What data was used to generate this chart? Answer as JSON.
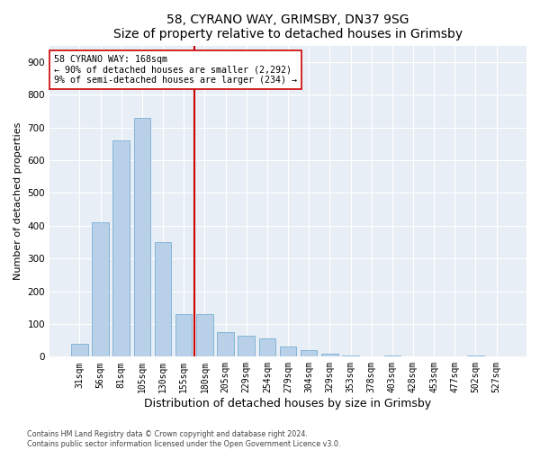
{
  "title1": "58, CYRANO WAY, GRIMSBY, DN37 9SG",
  "title2": "Size of property relative to detached houses in Grimsby",
  "xlabel": "Distribution of detached houses by size in Grimsby",
  "ylabel": "Number of detached properties",
  "categories": [
    "31sqm",
    "56sqm",
    "81sqm",
    "105sqm",
    "130sqm",
    "155sqm",
    "180sqm",
    "205sqm",
    "229sqm",
    "254sqm",
    "279sqm",
    "304sqm",
    "329sqm",
    "353sqm",
    "378sqm",
    "403sqm",
    "428sqm",
    "453sqm",
    "477sqm",
    "502sqm",
    "527sqm"
  ],
  "values": [
    40,
    410,
    660,
    730,
    350,
    130,
    130,
    75,
    65,
    55,
    30,
    20,
    10,
    5,
    0,
    5,
    0,
    0,
    0,
    5,
    0
  ],
  "bar_color": "#b8d0e8",
  "bar_edge_color": "#7aafd4",
  "vline_color": "#cc0000",
  "annotation_text": "58 CYRANO WAY: 168sqm\n← 90% of detached houses are smaller (2,292)\n9% of semi-detached houses are larger (234) →",
  "annotation_box_color": "#ffffff",
  "annotation_box_edge": "#cc0000",
  "ylim": [
    0,
    950
  ],
  "yticks": [
    0,
    100,
    200,
    300,
    400,
    500,
    600,
    700,
    800,
    900
  ],
  "footer1": "Contains HM Land Registry data © Crown copyright and database right 2024.",
  "footer2": "Contains public sector information licensed under the Open Government Licence v3.0.",
  "bg_color": "#ffffff",
  "plot_bg_color": "#e8eef5",
  "grid_color": "#ffffff",
  "title_fontsize": 10,
  "axis_label_fontsize": 8,
  "tick_fontsize": 7,
  "bar_width": 0.8
}
